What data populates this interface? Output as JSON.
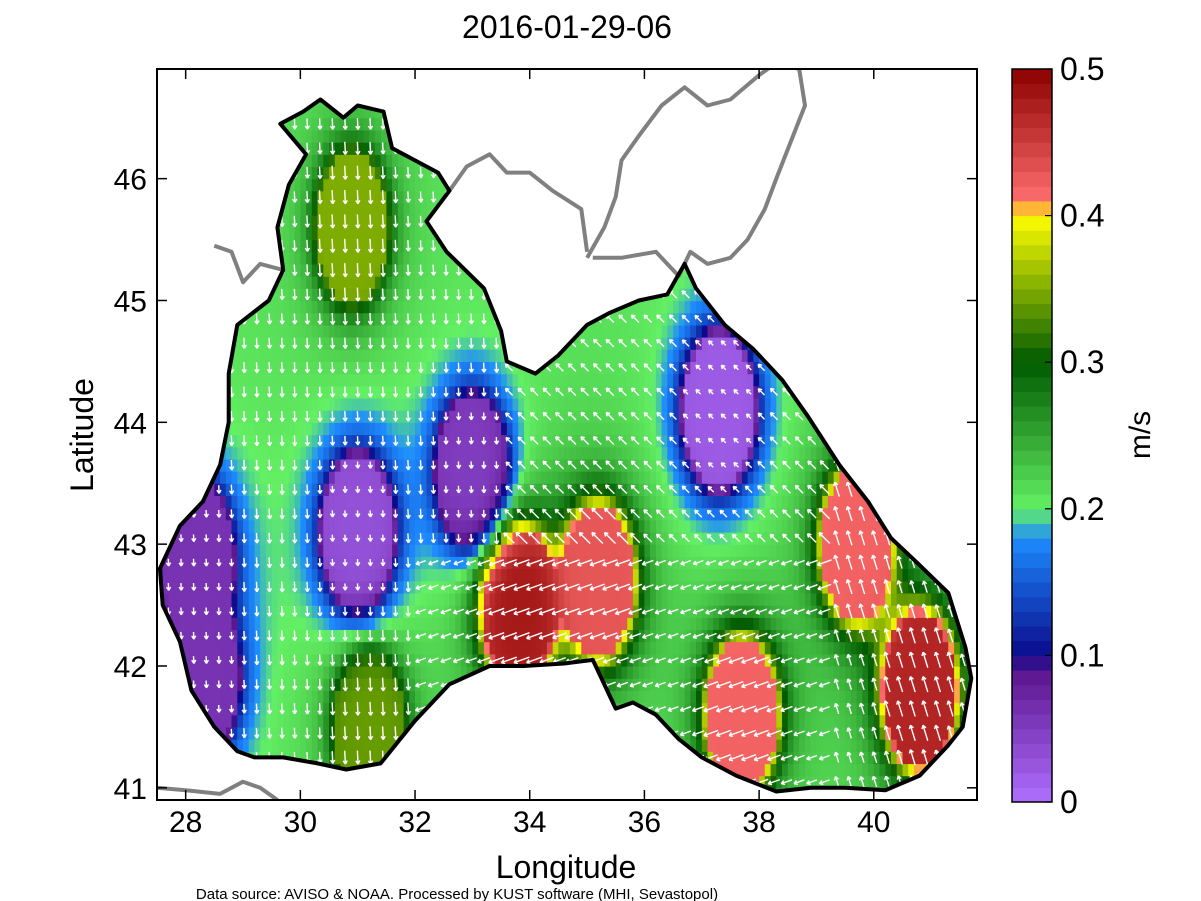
{
  "title": "2016-01-29-06",
  "map": {
    "region": "Black Sea",
    "variable": "surface current speed and direction",
    "xlabel": "Longitude",
    "ylabel": "Latitude",
    "xlim": [
      27.5,
      41.8
    ],
    "ylim": [
      40.9,
      46.9
    ],
    "xticks": [
      "28",
      "30",
      "32",
      "34",
      "36",
      "38",
      "40"
    ],
    "yticks": [
      "41",
      "42",
      "43",
      "44",
      "45",
      "46"
    ],
    "land_color": "#ffffff",
    "coastline_color": "#000000",
    "other_coast_color": "#808080",
    "arrow_color": "#ffffff"
  },
  "colorbar": {
    "label": "m/s",
    "ticks": [
      "0",
      "0.1",
      "0.2",
      "0.3",
      "0.4",
      "0.5"
    ],
    "range": [
      0,
      0.5
    ],
    "stops": [
      {
        "v": 0.0,
        "color": "#b070ff"
      },
      {
        "v": 0.09,
        "color": "#5a148c"
      },
      {
        "v": 0.1,
        "color": "#0a0a8c"
      },
      {
        "v": 0.18,
        "color": "#1e8cff"
      },
      {
        "v": 0.2,
        "color": "#64f064"
      },
      {
        "v": 0.3,
        "color": "#005a00"
      },
      {
        "v": 0.4,
        "color": "#ffff00"
      },
      {
        "v": 0.41,
        "color": "#ff6e6e"
      },
      {
        "v": 0.5,
        "color": "#8c0000"
      }
    ]
  },
  "features": [
    {
      "name": "north-east cyclonic gyre low speed",
      "lon": 37.3,
      "lat": 44.1,
      "speed": 0.02
    },
    {
      "name": "west low speed core",
      "lon": 31.0,
      "lat": 43.1,
      "speed": 0.03
    },
    {
      "name": "central low speed core",
      "lon": 33.0,
      "lat": 43.6,
      "speed": 0.05
    },
    {
      "name": "south-west coastal low",
      "lon": 28.2,
      "lat": 42.9,
      "speed": 0.06
    },
    {
      "name": "south-west coastal low 2",
      "lon": 28.3,
      "lat": 41.9,
      "speed": 0.06
    },
    {
      "name": "central jet",
      "lon": 33.8,
      "lat": 42.5,
      "speed": 0.48
    },
    {
      "name": "central jet east",
      "lon": 35.2,
      "lat": 42.7,
      "speed": 0.43
    },
    {
      "name": "eastern coastal jet",
      "lon": 40.8,
      "lat": 41.8,
      "speed": 0.47
    },
    {
      "name": "eastern coast north",
      "lon": 39.7,
      "lat": 43.0,
      "speed": 0.42
    },
    {
      "name": "south jet",
      "lon": 37.7,
      "lat": 41.6,
      "speed": 0.42
    },
    {
      "name": "north-west shelf band",
      "lon": 30.9,
      "lat": 45.6,
      "speed": 0.35
    },
    {
      "name": "south-west band",
      "lon": 31.2,
      "lat": 41.5,
      "speed": 0.34
    }
  ],
  "footer": "Data source: AVISO & NOAA. Processed by KUST software (MHI, Sevastopol)"
}
